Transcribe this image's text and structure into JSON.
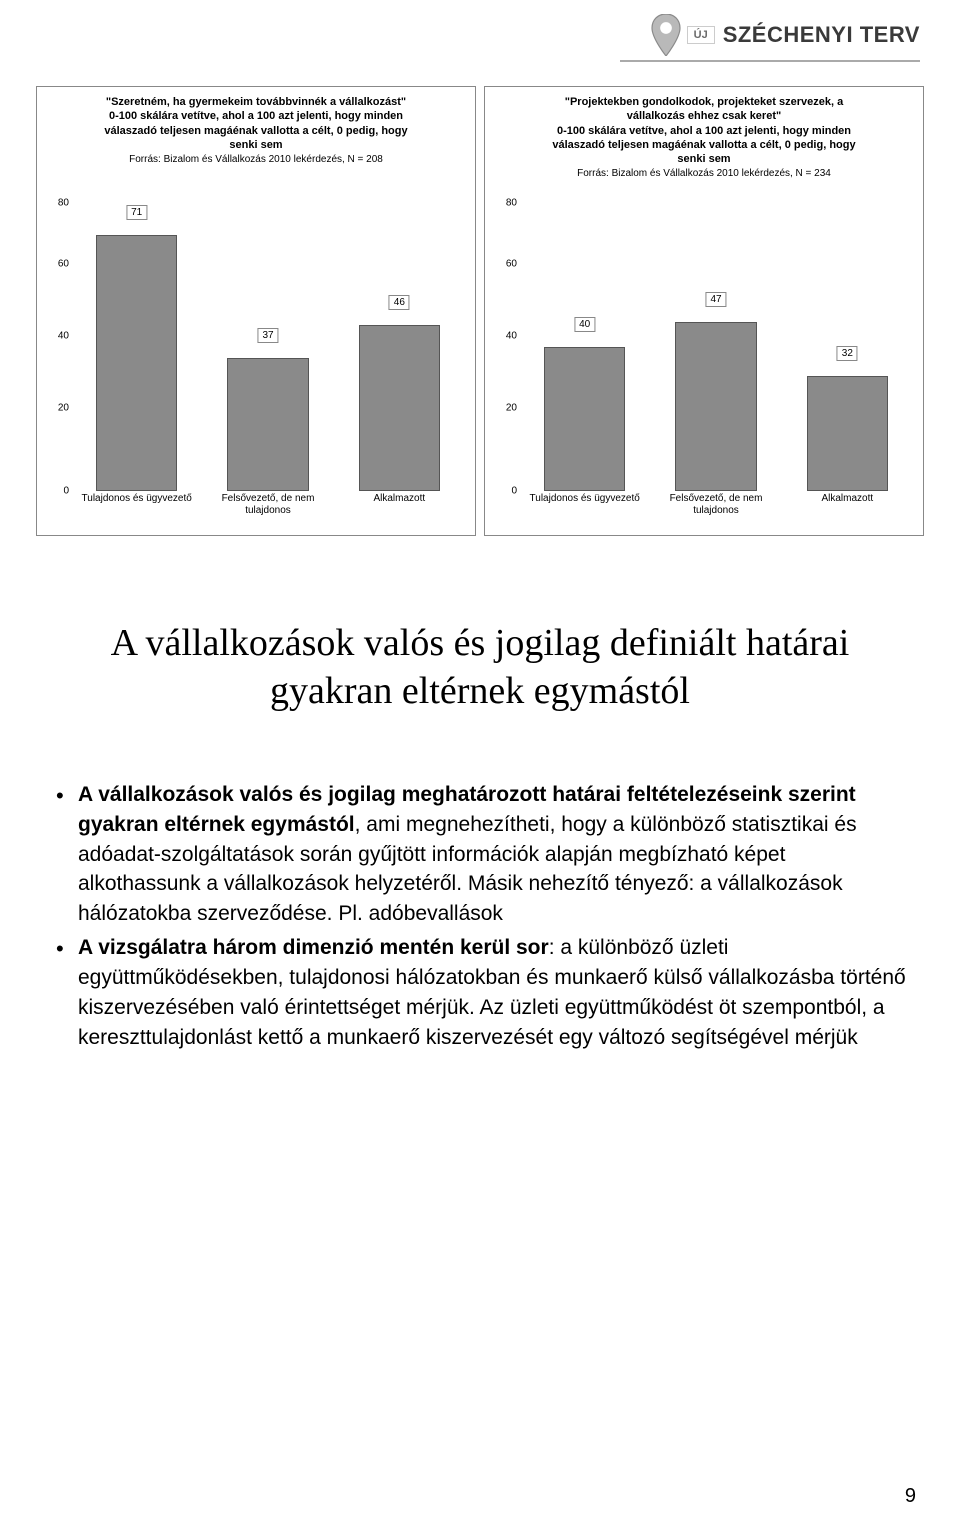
{
  "logo": {
    "badge": "ÚJ",
    "name": "SZÉCHENYI TERV",
    "pin_fill": "#b9b9b9",
    "pin_stroke": "#8a8a8a"
  },
  "chart_left": {
    "type": "bar",
    "title_line1": "\"Szeretném, ha gyermekeim továbbvinnék a vállalkozást\"",
    "title_line2": "0-100 skálára vetítve, ahol a 100 azt jelenti, hogy minden",
    "title_line3": "válaszadó teljesen magáénak vallotta a célt, 0 pedig, hogy",
    "title_line4": "senki sem",
    "source": "Forrás: Bizalom és Vállalkozás 2010 lekérdezés, N = 208",
    "ylim": [
      0,
      80
    ],
    "ytick_step": 20,
    "categories": [
      "Tulajdonos és ügyvezető",
      "Felsővezető, de nem tulajdonos",
      "Alkalmazott"
    ],
    "values": [
      71,
      37,
      46
    ],
    "bar_color": "#8a8a8a",
    "bar_border": "#555555",
    "label_bg": "#ffffff",
    "label_border": "#888888"
  },
  "chart_right": {
    "type": "bar",
    "title_line1": "\"Projektekben gondolkodok, projekteket szervezek, a",
    "title_line2": "vállalkozás ehhez csak keret\"",
    "title_line3": "0-100 skálára vetítve, ahol a 100 azt jelenti, hogy minden",
    "title_line4": "válaszadó teljesen magáénak vallotta a célt, 0 pedig, hogy",
    "title_line5": "senki sem",
    "source": "Forrás: Bizalom és Vállalkozás 2010 lekérdezés, N = 234",
    "ylim": [
      0,
      80
    ],
    "ytick_step": 20,
    "categories": [
      "Tulajdonos és ügyvezető",
      "Felsővezető, de nem tulajdonos",
      "Alkalmazott"
    ],
    "values": [
      40,
      47,
      32
    ],
    "bar_color": "#8a8a8a",
    "bar_border": "#555555",
    "label_bg": "#ffffff",
    "label_border": "#888888"
  },
  "heading": "A vállalkozások valós és jogilag definiált határai gyakran eltérnek egymástól",
  "bullets": [
    {
      "bold1": "A vállalkozások valós és jogilag meghatározott határai feltételezéseink szerint gyakran eltérnek egymástól",
      "text1": ", ami megnehezítheti, hogy a különböző statisztikai és adóadat-szolgáltatások során gyűjtött információk alapján megbízható képet alkothassunk a vállalkozások helyzetéről. Másik nehezítő tényező: a vállalkozások hálózatokba szerveződése. Pl. adóbevallások"
    },
    {
      "bold1": "A vizsgálatra három dimenzió mentén kerül sor",
      "text1": ": a különböző üzleti együttműködésekben, tulajdonosi hálózatokban és munkaerő külső vállalkozásba történő kiszervezésében való érintettséget mérjük. Az üzleti együttműködést öt szempontból, a kereszttulajdonlást kettő a munkaerő kiszervezését egy változó segítségével mérjük"
    }
  ],
  "page_number": "9"
}
